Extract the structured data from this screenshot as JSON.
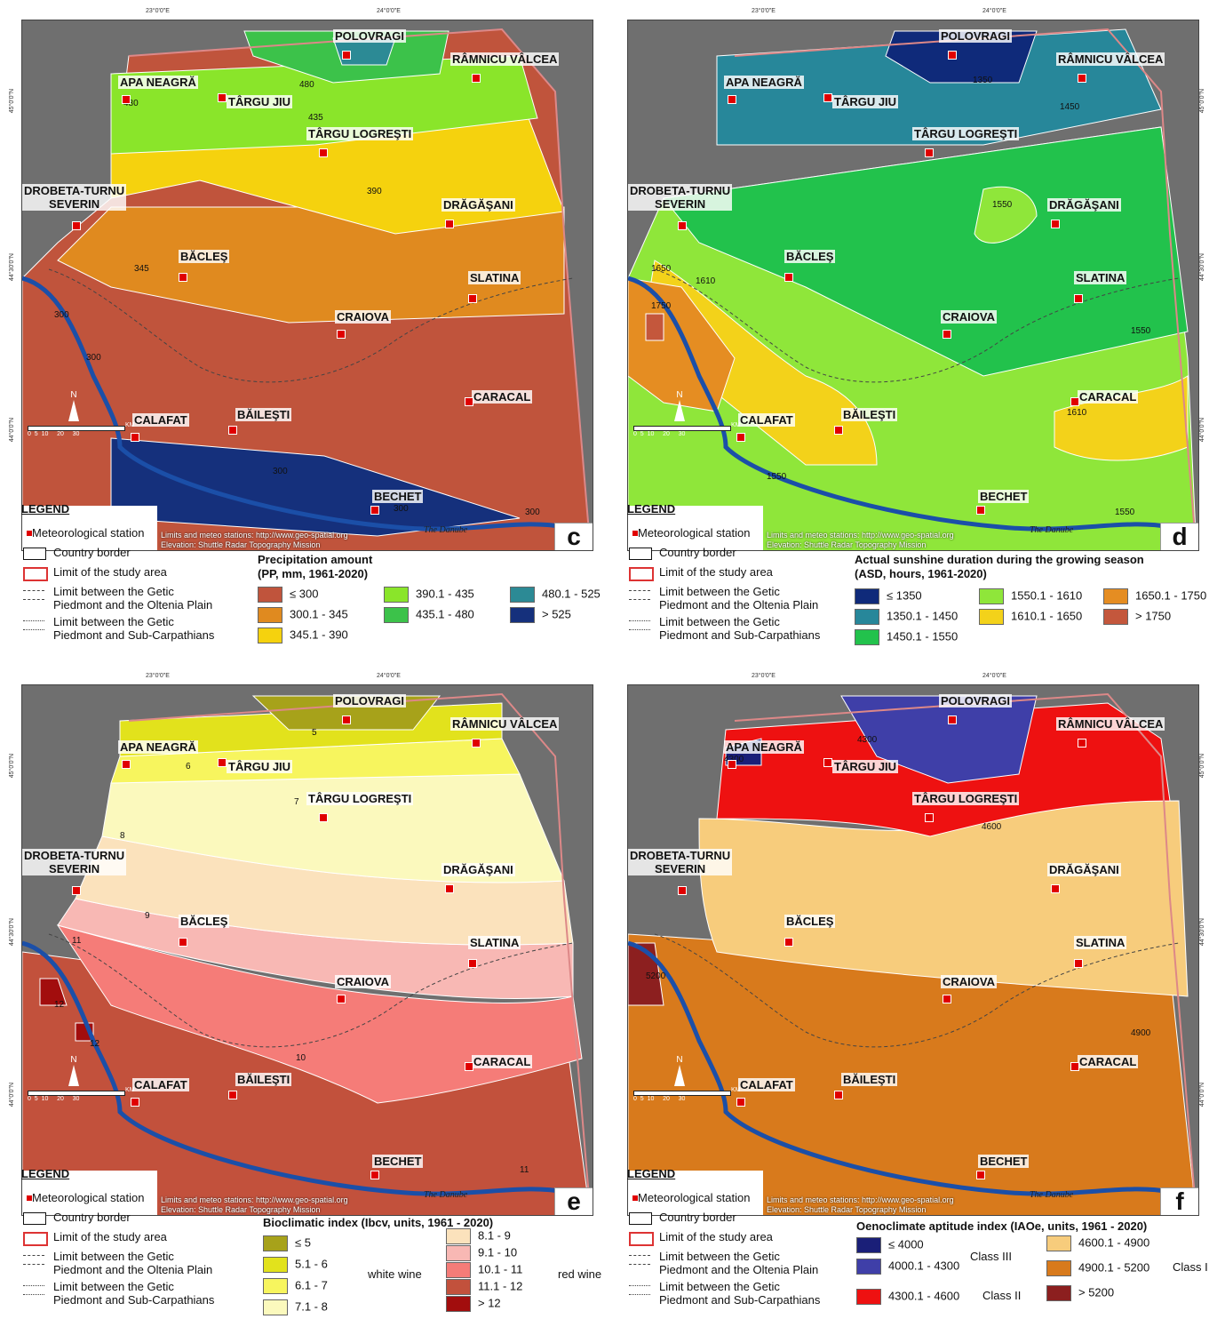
{
  "coords": {
    "top": [
      "23°0'0\"E",
      "24°0'0\"E"
    ],
    "side": [
      "45°0'0\"N",
      "44°30'0\"N",
      "44°0'0\"N"
    ]
  },
  "stations": {
    "polovragi": "POLOVRAGI",
    "ramnicu": "RÂMNICU VÂLCEA",
    "apa_neagra": "APA NEAGRĂ",
    "targu_jiu": "TÂRGU JIU",
    "targu_logresti": "TÂRGU LOGREŞTI",
    "drobeta_1": "DROBETA-TURNU",
    "drobeta_2": "SEVERIN",
    "dragasani": "DRĂGĂŞANI",
    "bacles": "BĂCLEŞ",
    "slatina": "SLATINA",
    "craiova": "CRAIOVA",
    "caracal": "CARACAL",
    "calafat": "CALAFAT",
    "bailesti": "BĂILEŞTI",
    "bechet": "BECHET"
  },
  "source_line1": "Limits and meteo stations: http://www.geo-spatial.org",
  "source_line2": "Elevation: Shuttle Radar Topography Mission",
  "river": "The Danube",
  "scale_unit": "KM",
  "scale_ticks": "0  5  10     20     30",
  "north": "N",
  "legend": {
    "title": "LEGEND",
    "station": "Meteorological station",
    "country": "Country border",
    "limit": "Limit of the study area",
    "getic1a": "Limit between the Getic",
    "getic1b": "Piedmont and the Oltenia Plain",
    "getic2a": "Limit between the Getic",
    "getic2b": "Piedmont and Sub-Carpathians"
  },
  "panels": {
    "c": {
      "letter": "c",
      "title1": "Precipitation amount",
      "title2": "(PP, mm, 1961-2020)",
      "classes": [
        {
          "label": "≤ 300",
          "color": "#c0543c"
        },
        {
          "label": "300.1 - 345",
          "color": "#e08a1f"
        },
        {
          "label": "345.1 - 390",
          "color": "#f5d20e"
        },
        {
          "label": "390.1 - 435",
          "color": "#8ae52a"
        },
        {
          "label": "435.1 - 480",
          "color": "#3cc24a"
        },
        {
          "label": "480.1 - 525",
          "color": "#2c8a95"
        },
        {
          "label": "> 525",
          "color": "#15307c"
        }
      ],
      "isolines": [
        "480",
        "435",
        "390",
        "345",
        "300",
        "300",
        "300",
        "300",
        "300",
        "480"
      ]
    },
    "d": {
      "letter": "d",
      "title1": "Actual sunshine duration during the growing season",
      "title2": "(ASD, hours, 1961-2020)",
      "classes": [
        {
          "label": "≤ 1350",
          "color": "#0f2a7a"
        },
        {
          "label": "1350.1 - 1450",
          "color": "#27879a"
        },
        {
          "label": "1450.1 - 1550",
          "color": "#22c24c"
        },
        {
          "label": "1550.1 - 1610",
          "color": "#8fe63a"
        },
        {
          "label": "1610.1 - 1650",
          "color": "#f3d21a"
        },
        {
          "label": "1650.1 - 1750",
          "color": "#e58d22"
        },
        {
          "label": "> 1750",
          "color": "#c4573c"
        }
      ],
      "isolines": [
        "1350",
        "1450",
        "1550",
        "1650",
        "1610",
        "1750",
        "1550",
        "1610",
        "1550",
        "1550"
      ]
    },
    "e": {
      "letter": "e",
      "title1": "Bioclimatic index (Ibcv, units, 1961 - 2020)",
      "classes": [
        {
          "label": "≤ 5",
          "color": "#a7a21a"
        },
        {
          "label": "5.1 - 6",
          "color": "#e2e21c"
        },
        {
          "label": "6.1 - 7",
          "color": "#f7f55e"
        },
        {
          "label": "7.1 - 8",
          "color": "#fbf9bd"
        },
        {
          "label": "8.1 - 9",
          "color": "#fbe2bc"
        },
        {
          "label": "9.1 - 10",
          "color": "#f8b8b4"
        },
        {
          "label": "10.1 - 11",
          "color": "#f57c78"
        },
        {
          "label": "11.1 - 12",
          "color": "#c2513c"
        },
        {
          "label": "> 12",
          "color": "#a20d0d"
        }
      ],
      "group_white": "white wine",
      "group_red": "red wine",
      "isolines": [
        "5",
        "6",
        "7",
        "8",
        "9",
        "11",
        "10",
        "12",
        "12",
        "11"
      ]
    },
    "f": {
      "letter": "f",
      "title1": "Oenoclimate aptitude index (IAOe, units, 1961 - 2020)",
      "classes": [
        {
          "label": "≤ 4000",
          "color": "#1a1f78"
        },
        {
          "label": "4000.1 - 4300",
          "color": "#3f3fa8"
        },
        {
          "label": "4300.1 - 4600",
          "color": "#ee1111"
        },
        {
          "label": "4600.1 - 4900",
          "color": "#f7cc7c"
        },
        {
          "label": "4900.1 - 5200",
          "color": "#d87a1c"
        },
        {
          "label": "> 5200",
          "color": "#8c1f1f"
        }
      ],
      "class_iii": "Class III",
      "class_ii": "Class II",
      "class_i": "Class I",
      "isolines": [
        "4300",
        "4600",
        "4900",
        "5200",
        "4300"
      ]
    }
  }
}
